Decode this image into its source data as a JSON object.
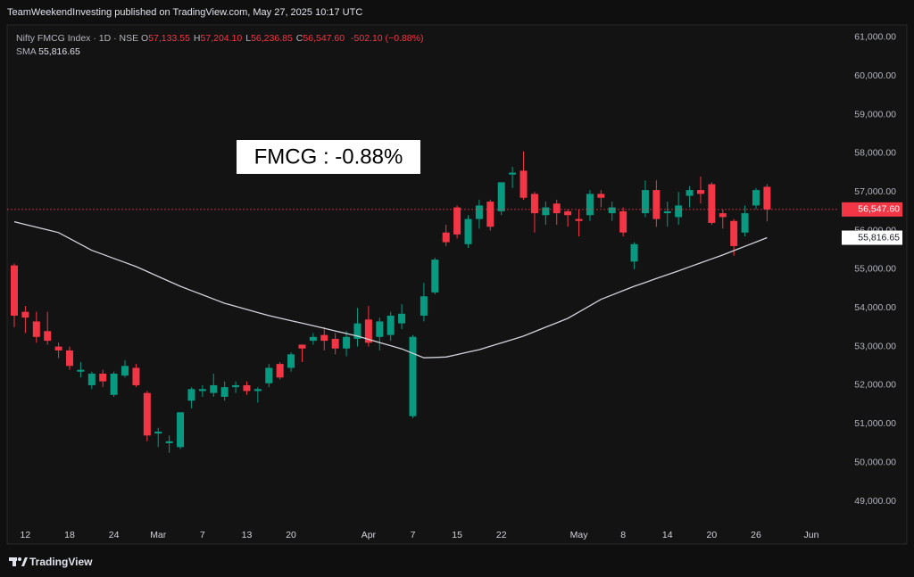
{
  "header": {
    "published": "TeamWeekendInvesting published on TradingView.com, May 27, 2025 10:17 UTC"
  },
  "footer": {
    "brand": "TradingView"
  },
  "chart_data": {
    "type": "candlestick",
    "symbol": "Nifty FMCG Index · 1D · NSE",
    "legend_items": [
      {
        "key": "O",
        "label": "57,133.55"
      },
      {
        "key": "H",
        "label": "57,204.10"
      },
      {
        "key": "L",
        "label": "56,236.85"
      },
      {
        "key": "C",
        "label": "56,547.60"
      }
    ],
    "change_label": "-502.10 (−0.88%)",
    "annotation": "FMCG : -0.88%",
    "grid": false,
    "xlim": [
      -0.645,
      74.5
    ],
    "xticks": [
      {
        "value": 1,
        "label": "12"
      },
      {
        "value": 5,
        "label": "18"
      },
      {
        "value": 9,
        "label": "24"
      },
      {
        "value": 13,
        "label": "Mar"
      },
      {
        "value": 17,
        "label": "7"
      },
      {
        "value": 21,
        "label": "13"
      },
      {
        "value": 25,
        "label": "20"
      },
      {
        "value": 32,
        "label": "Apr"
      },
      {
        "value": 36,
        "label": "7"
      },
      {
        "value": 40,
        "label": "15"
      },
      {
        "value": 44,
        "label": "22"
      },
      {
        "value": 51,
        "label": "May"
      },
      {
        "value": 55,
        "label": "8"
      },
      {
        "value": 59,
        "label": "14"
      },
      {
        "value": 63,
        "label": "20"
      },
      {
        "value": 67,
        "label": "26"
      },
      {
        "value": 72,
        "label": "Jun"
      }
    ],
    "ylim": [
      48400,
      61320
    ],
    "yticks": [
      {
        "value": 49000,
        "label": "49,000.00"
      },
      {
        "value": 50000,
        "label": "50,000.00"
      },
      {
        "value": 51000,
        "label": "51,000.00"
      },
      {
        "value": 52000,
        "label": "52,000.00"
      },
      {
        "value": 53000,
        "label": "53,000.00"
      },
      {
        "value": 54000,
        "label": "54,000.00"
      },
      {
        "value": 55000,
        "label": "55,000.00"
      },
      {
        "value": 56000,
        "label": "56,000.00"
      },
      {
        "value": 57000,
        "label": "57,000.00"
      },
      {
        "value": 58000,
        "label": "58,000.00"
      },
      {
        "value": 59000,
        "label": "59,000.00"
      },
      {
        "value": 60000,
        "label": "60,000.00"
      },
      {
        "value": 61000,
        "label": "61,000.00"
      }
    ],
    "candles": {
      "up_color": "#089981",
      "down_color": "#f23645",
      "open": [
        55100,
        53900,
        53650,
        53400,
        53000,
        52900,
        52350,
        52000,
        52300,
        51750,
        52250,
        52450,
        51800,
        50750,
        50500,
        50400,
        51600,
        51850,
        51800,
        51700,
        51950,
        52000,
        51850,
        52050,
        52550,
        52450,
        53050,
        53150,
        53300,
        53200,
        52950,
        53200,
        53700,
        53250,
        53300,
        53600,
        51200,
        53800,
        54400,
        55950,
        56600,
        55650,
        56300,
        56750,
        56500,
        57450,
        57550,
        56950,
        56400,
        56700,
        56500,
        56300,
        56400,
        56950,
        56450,
        56500,
        55200,
        56450,
        57050,
        56450,
        56350,
        56900,
        57050,
        57200,
        56450,
        56250,
        55950,
        56650,
        57133.55
      ],
      "high": [
        55150,
        54050,
        53900,
        53900,
        53100,
        53000,
        52600,
        52350,
        52400,
        52350,
        52650,
        52550,
        51850,
        50900,
        50700,
        51300,
        51950,
        52000,
        52300,
        52100,
        52100,
        52100,
        51950,
        52550,
        52600,
        52850,
        53050,
        53350,
        53500,
        53350,
        53400,
        54000,
        54050,
        53750,
        53900,
        54100,
        53300,
        54650,
        55300,
        56150,
        56650,
        56400,
        56800,
        56800,
        57250,
        57650,
        58050,
        57000,
        56750,
        56800,
        56550,
        56550,
        57050,
        57050,
        56750,
        56600,
        55700,
        57300,
        57300,
        56750,
        57000,
        57150,
        57400,
        57250,
        56550,
        56300,
        56650,
        57100,
        57204.1
      ],
      "low": [
        53500,
        53350,
        53100,
        53050,
        52700,
        52400,
        52200,
        51900,
        51950,
        51700,
        52200,
        51950,
        50550,
        50400,
        50250,
        50350,
        51400,
        51700,
        51700,
        51600,
        51800,
        51750,
        51550,
        51950,
        52150,
        52350,
        52600,
        53050,
        52900,
        52800,
        52750,
        53000,
        53000,
        52900,
        53150,
        53450,
        51150,
        53650,
        54350,
        55600,
        55800,
        55550,
        56050,
        56000,
        56400,
        57100,
        56800,
        55950,
        56150,
        56150,
        56100,
        55850,
        56250,
        56600,
        56250,
        55850,
        55000,
        56350,
        56100,
        56100,
        56150,
        56600,
        56700,
        56150,
        56050,
        55350,
        55850,
        56550,
        56236.85
      ],
      "close": [
        53800,
        53750,
        53250,
        53150,
        52900,
        52500,
        52400,
        52300,
        52100,
        52300,
        52500,
        52000,
        50700,
        50800,
        50550,
        51300,
        51900,
        51900,
        52000,
        51950,
        52000,
        51850,
        51900,
        52450,
        52200,
        52800,
        52950,
        53250,
        53150,
        52950,
        53250,
        53600,
        53100,
        53650,
        53800,
        53850,
        53250,
        54300,
        55250,
        55700,
        55900,
        56300,
        56650,
        56100,
        57250,
        57500,
        56850,
        56450,
        56600,
        56450,
        56400,
        56250,
        56950,
        56850,
        56600,
        55950,
        55650,
        57050,
        56300,
        56500,
        56650,
        57050,
        56950,
        56200,
        56350,
        55600,
        56450,
        57050,
        56547.6
      ]
    },
    "last_price": {
      "label": "56,547.60",
      "color": "#f23645"
    },
    "sma": {
      "name": "SMA",
      "value_label": "55,816.65",
      "color": "#d1d4dc",
      "values": [
        56230,
        56160,
        56090,
        56020,
        55950,
        55797,
        55643,
        55490,
        55385,
        55280,
        55175,
        55070,
        54943,
        54815,
        54688,
        54560,
        54450,
        54340,
        54230,
        54120,
        54040,
        53960,
        53880,
        53800,
        53735,
        53670,
        53605,
        53540,
        53473,
        53405,
        53338,
        53270,
        53188,
        53105,
        53023,
        52940,
        52825,
        52710,
        52720,
        52730,
        52793,
        52857,
        52920,
        53008,
        53095,
        53183,
        53270,
        53385,
        53500,
        53615,
        53730,
        53893,
        54057,
        54220,
        54333,
        54447,
        54560,
        54660,
        54760,
        54860,
        54960,
        55063,
        55165,
        55268,
        55370,
        55482,
        55593,
        55705,
        55816.65
      ]
    }
  }
}
